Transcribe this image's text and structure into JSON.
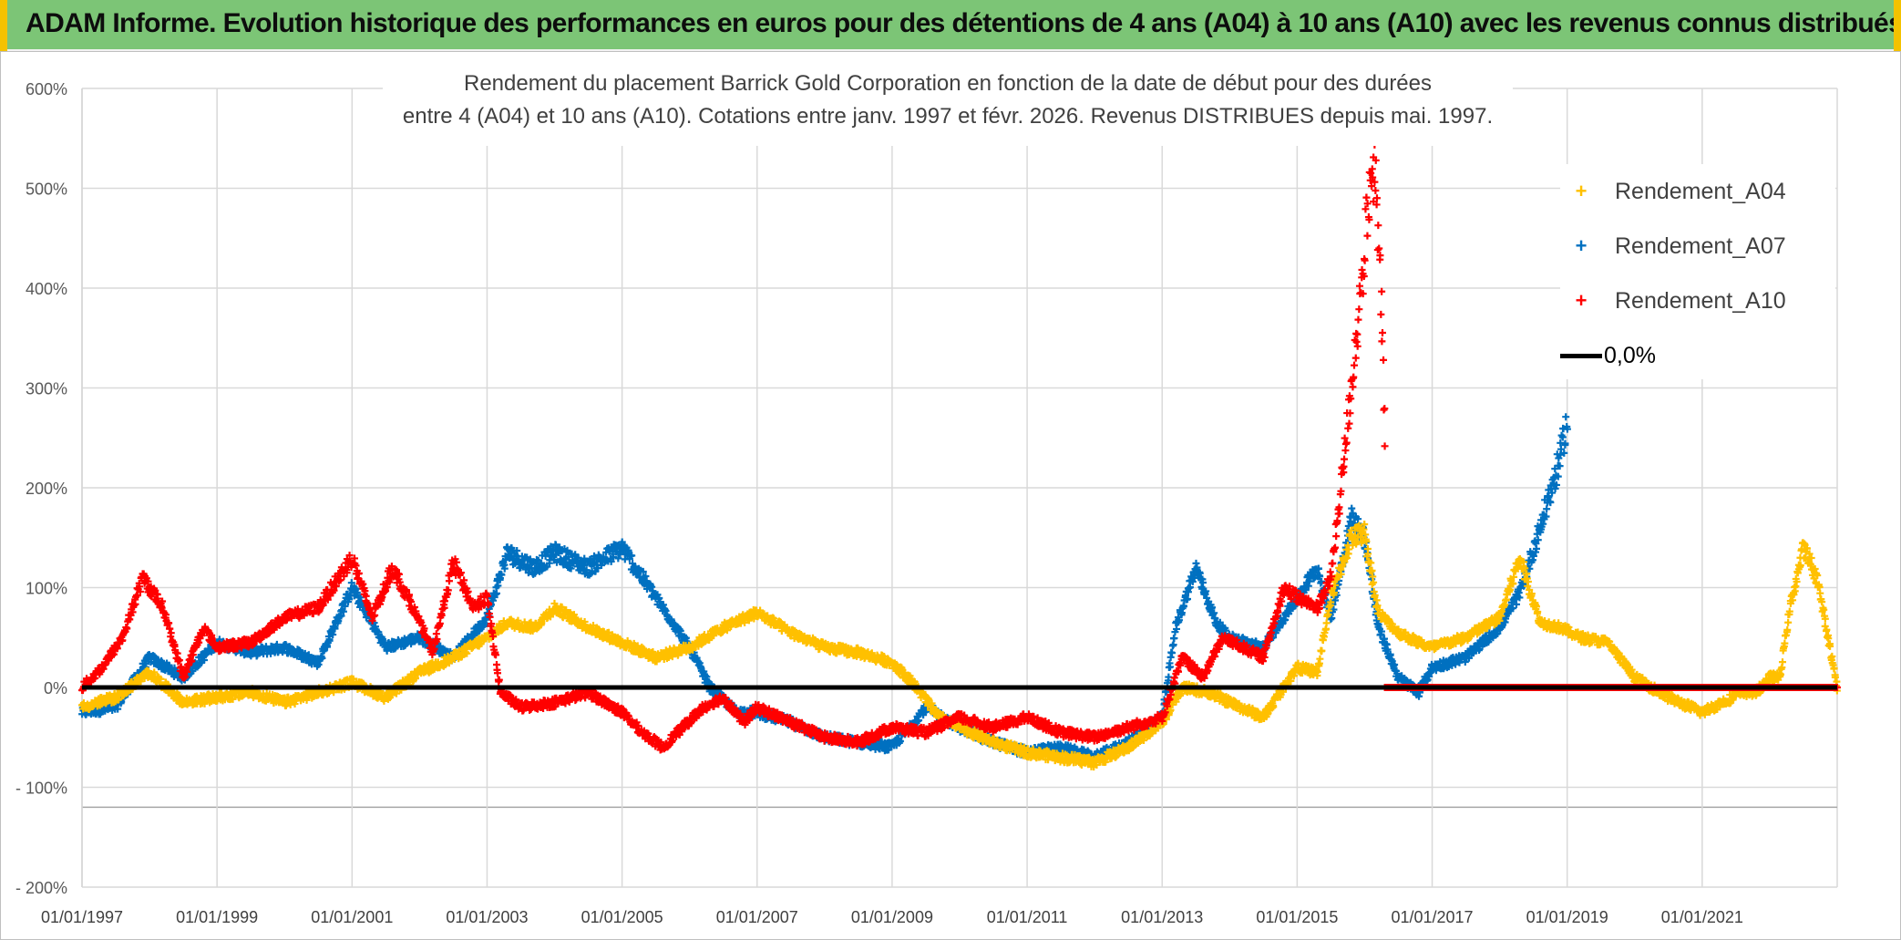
{
  "header": {
    "title": "ADAM Informe. Evolution historique des performances en euros pour des détentions de 4 ans (A04) à 10 ans (A10) avec les revenus connus distribués"
  },
  "colors": {
    "header_bg": "#7CC576",
    "A04": "#FFC000",
    "A07": "#0070C0",
    "A10": "#FF0000",
    "zero_line": "#000000",
    "grid": "#D9D9D9"
  },
  "chart_data": {
    "type": "scatter",
    "title_lines": [
      "Rendement du placement Barrick Gold Corporation en fonction de la date de début pour des durées",
      "entre 4 (A04) et 10 ans (A10). Cotations entre janv. 1997 et févr. 2026. Revenus DISTRIBUES depuis mai. 1997."
    ],
    "x_range": [
      1997.0,
      2023.0
    ],
    "x_ticks": [
      {
        "year": 1997,
        "label": "01/01/1997"
      },
      {
        "year": 1999,
        "label": "01/01/1999"
      },
      {
        "year": 2001,
        "label": "01/01/2001"
      },
      {
        "year": 2003,
        "label": "01/01/2003"
      },
      {
        "year": 2005,
        "label": "01/01/2005"
      },
      {
        "year": 2007,
        "label": "01/01/2007"
      },
      {
        "year": 2009,
        "label": "01/01/2009"
      },
      {
        "year": 2011,
        "label": "01/01/2011"
      },
      {
        "year": 2013,
        "label": "01/01/2013"
      },
      {
        "year": 2015,
        "label": "01/01/2015"
      },
      {
        "year": 2017,
        "label": "01/01/2017"
      },
      {
        "year": 2019,
        "label": "01/01/2019"
      },
      {
        "year": 2021,
        "label": "01/01/2021"
      }
    ],
    "y_range": [
      -200,
      600
    ],
    "y_ticks": [
      {
        "value": 600,
        "label": "600%"
      },
      {
        "value": 500,
        "label": "500%"
      },
      {
        "value": 400,
        "label": "400%"
      },
      {
        "value": 300,
        "label": "300%"
      },
      {
        "value": 200,
        "label": "200%"
      },
      {
        "value": 100,
        "label": "100%"
      },
      {
        "value": 0,
        "label": "0%"
      },
      {
        "value": -100,
        "label": "- 100%"
      },
      {
        "value": -200,
        "label": "- 200%"
      }
    ],
    "zero_line": {
      "value": 0,
      "label": "0,0%"
    },
    "series": [
      {
        "name": "Rendement_A04",
        "color": "#FFC000",
        "x": [
          1997.0,
          1997.5,
          1998.0,
          1998.5,
          1999.0,
          1999.5,
          2000.0,
          2000.5,
          2001.0,
          2001.5,
          2002.0,
          2002.5,
          2003.0,
          2003.3,
          2003.7,
          2004.0,
          2004.5,
          2005.0,
          2005.5,
          2006.0,
          2006.5,
          2007.0,
          2007.5,
          2008.0,
          2008.5,
          2009.0,
          2009.3,
          2009.7,
          2010.0,
          2010.5,
          2011.0,
          2011.5,
          2012.0,
          2012.5,
          2013.0,
          2013.3,
          2013.7,
          2014.0,
          2014.5,
          2015.0,
          2015.3,
          2015.5,
          2015.8,
          2016.0,
          2016.2,
          2016.5,
          2016.8,
          2017.0,
          2017.5,
          2018.0,
          2018.3,
          2018.6,
          2018.9,
          2019.2,
          2019.6,
          2020.0,
          2020.5,
          2021.0,
          2021.3,
          2021.6,
          2021.8,
          2022.0,
          2022.15,
          2022.3,
          2022.5,
          2022.7,
          2023.0
        ],
        "y": [
          -20,
          -10,
          15,
          -15,
          -10,
          -5,
          -15,
          -5,
          5,
          -10,
          15,
          30,
          50,
          65,
          60,
          80,
          60,
          45,
          30,
          40,
          60,
          75,
          55,
          40,
          35,
          25,
          5,
          -30,
          -40,
          -55,
          -65,
          -70,
          -75,
          -60,
          -35,
          0,
          -5,
          -15,
          -30,
          20,
          15,
          90,
          150,
          155,
          75,
          55,
          45,
          40,
          50,
          70,
          130,
          65,
          60,
          50,
          45,
          10,
          -10,
          -25,
          -15,
          -5,
          -5,
          10,
          10,
          80,
          140,
          110,
          0
        ]
      },
      {
        "name": "Rendement_A07",
        "color": "#0070C0",
        "x": [
          1997.0,
          1997.5,
          1998.0,
          1998.5,
          1999.0,
          1999.5,
          2000.0,
          2000.5,
          2001.0,
          2001.5,
          2002.0,
          2002.5,
          2003.0,
          2003.3,
          2003.7,
          2004.0,
          2004.5,
          2005.0,
          2005.5,
          2006.0,
          2006.3,
          2006.7,
          2007.0,
          2007.5,
          2008.0,
          2008.5,
          2009.0,
          2009.5,
          2010.0,
          2010.5,
          2011.0,
          2011.5,
          2012.0,
          2012.5,
          2013.0,
          2013.2,
          2013.5,
          2013.8,
          2014.0,
          2014.5,
          2015.0,
          2015.3,
          2015.5,
          2015.8,
          2016.0,
          2016.2,
          2016.5,
          2016.8,
          2017.0,
          2017.5,
          2018.0,
          2018.3,
          2018.6,
          2018.9,
          2019.0
        ],
        "y": [
          -25,
          -20,
          30,
          10,
          45,
          35,
          40,
          25,
          100,
          40,
          50,
          30,
          70,
          135,
          120,
          135,
          120,
          140,
          90,
          40,
          0,
          -25,
          -25,
          -35,
          -50,
          -55,
          -60,
          -20,
          -40,
          -55,
          -65,
          -60,
          -70,
          -55,
          -30,
          60,
          120,
          65,
          50,
          40,
          90,
          120,
          70,
          170,
          150,
          60,
          10,
          -5,
          20,
          30,
          60,
          95,
          160,
          230,
          270
        ]
      },
      {
        "name": "Rendement_A10",
        "color": "#FF0000",
        "x": [
          1997.0,
          1997.3,
          1997.6,
          1997.9,
          1998.2,
          1998.5,
          1998.8,
          1999.0,
          1999.5,
          2000.0,
          2000.5,
          2001.0,
          2001.3,
          2001.6,
          2001.9,
          2002.2,
          2002.5,
          2002.8,
          2003.0,
          2003.2,
          2003.5,
          2004.0,
          2004.5,
          2005.0,
          2005.3,
          2005.6,
          2005.9,
          2006.2,
          2006.5,
          2006.8,
          2007.0,
          2007.5,
          2008.0,
          2008.5,
          2009.0,
          2009.5,
          2010.0,
          2010.5,
          2011.0,
          2011.5,
          2012.0,
          2012.5,
          2013.0,
          2013.3,
          2013.6,
          2013.9,
          2014.2,
          2014.5,
          2014.8,
          2015.0,
          2015.3,
          2015.5,
          2015.65,
          2015.8,
          2015.95,
          2016.05,
          2016.15,
          2016.25,
          2016.3
        ],
        "y": [
          0,
          20,
          50,
          110,
          80,
          10,
          60,
          40,
          45,
          70,
          80,
          130,
          70,
          120,
          80,
          35,
          125,
          80,
          90,
          -5,
          -20,
          -15,
          -5,
          -25,
          -45,
          -60,
          -40,
          -20,
          -10,
          -35,
          -20,
          -35,
          -50,
          -55,
          -40,
          -45,
          -30,
          -40,
          -30,
          -45,
          -50,
          -40,
          -30,
          30,
          10,
          50,
          40,
          30,
          100,
          90,
          80,
          110,
          200,
          300,
          400,
          480,
          520,
          380,
          250
        ]
      }
    ],
    "A10_flat_from": 2016.3,
    "A10_flat_to": 2023.0,
    "legend": [
      {
        "name": "Rendement_A04",
        "marker": "+",
        "color": "#FFC000"
      },
      {
        "name": "Rendement_A07",
        "marker": "+",
        "color": "#0070C0"
      },
      {
        "name": "Rendement_A10",
        "marker": "+",
        "color": "#FF0000"
      },
      {
        "name": "0,0%",
        "marker": "line",
        "color": "#000000"
      }
    ]
  }
}
